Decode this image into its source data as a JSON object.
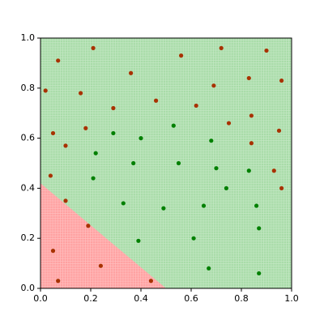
{
  "chart_data": {
    "type": "scatter",
    "xlim": [
      0,
      1
    ],
    "ylim": [
      0,
      1
    ],
    "xticks": [
      {
        "value": 0,
        "label": "0.0"
      },
      0.2,
      0.4,
      0.6,
      0.8,
      {
        "value": 1,
        "label": "1.0"
      }
    ],
    "yticks": [
      {
        "value": 0,
        "label": "0.0"
      },
      0.2,
      0.4,
      0.6,
      0.8,
      {
        "value": 1,
        "label": "1.0"
      }
    ],
    "region_colors": [
      "#ffa0a0",
      "#a8dca8"
    ],
    "boundary": {
      "x": [
        0,
        0.5
      ],
      "y": [
        0.42,
        0
      ]
    },
    "series": [
      {
        "color": "#a83200",
        "x": [
          0.02,
          0.07,
          0.21,
          0.36,
          0.56,
          0.72,
          0.9,
          0.96,
          0.16,
          0.29,
          0.46,
          0.69,
          0.83,
          0.62,
          0.05,
          0.1,
          0.18,
          0.75,
          0.84,
          0.95,
          0.84,
          0.04,
          0.93,
          0.96,
          0.1,
          0.19,
          0.05,
          0.24,
          0.07,
          0.44
        ],
        "values": [
          0.79,
          0.91,
          0.96,
          0.86,
          0.93,
          0.96,
          0.95,
          0.83,
          0.78,
          0.72,
          0.75,
          0.81,
          0.84,
          0.73,
          0.62,
          0.57,
          0.64,
          0.66,
          0.69,
          0.63,
          0.58,
          0.45,
          0.47,
          0.4,
          0.35,
          0.25,
          0.15,
          0.09,
          0.03,
          0.03
        ]
      },
      {
        "color": "#008000",
        "x": [
          0.29,
          0.22,
          0.4,
          0.21,
          0.37,
          0.53,
          0.33,
          0.49,
          0.55,
          0.68,
          0.7,
          0.74,
          0.65,
          0.83,
          0.86,
          0.87,
          0.39,
          0.61,
          0.67,
          0.87
        ],
        "values": [
          0.62,
          0.54,
          0.6,
          0.44,
          0.5,
          0.65,
          0.34,
          0.32,
          0.5,
          0.59,
          0.48,
          0.4,
          0.33,
          0.47,
          0.33,
          0.24,
          0.19,
          0.2,
          0.08,
          0.06
        ]
      }
    ]
  }
}
